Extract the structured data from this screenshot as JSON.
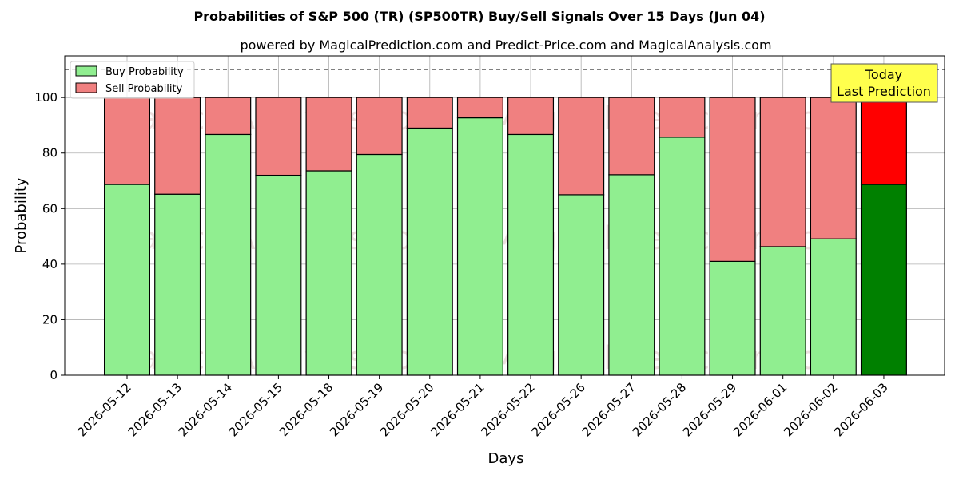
{
  "chart_data": {
    "type": "bar",
    "stacked": true,
    "title": "Probabilities of S&P 500 (TR) (SP500TR) Buy/Sell Signals Over 15 Days (Jun 04)",
    "subtitle": "powered by MagicalPrediction.com and Predict-Price.com and MagicalAnalysis.com",
    "xlabel": "Days",
    "ylabel": "Probability",
    "ylim": [
      0,
      115
    ],
    "yticks": [
      0,
      20,
      40,
      60,
      80,
      100
    ],
    "reference_line": 110,
    "grid": true,
    "legend_position": "top-left",
    "categories": [
      "2026-05-12",
      "2026-05-13",
      "2026-05-14",
      "2026-05-15",
      "2026-05-18",
      "2026-05-19",
      "2026-05-20",
      "2026-05-21",
      "2026-05-22",
      "2026-05-26",
      "2026-05-27",
      "2026-05-28",
      "2026-05-29",
      "2026-06-01",
      "2026-06-02",
      "2026-06-03"
    ],
    "series": [
      {
        "name": "Buy Probability",
        "color": "#90ee90",
        "highlight_color": "#008000",
        "values": [
          68.7,
          65.2,
          86.7,
          72.0,
          73.6,
          79.5,
          89.0,
          92.7,
          86.7,
          65.0,
          72.2,
          85.7,
          41.0,
          46.3,
          49.1,
          68.7
        ]
      },
      {
        "name": "Sell Probability",
        "color": "#f08080",
        "highlight_color": "#ff0000",
        "values": [
          31.3,
          34.8,
          13.3,
          28.0,
          26.4,
          20.5,
          11.0,
          7.3,
          13.3,
          35.0,
          27.8,
          14.3,
          59.0,
          53.7,
          50.9,
          31.3
        ]
      }
    ],
    "annotation": {
      "lines": [
        "Today",
        "Last Prediction"
      ],
      "bg": "#ffff4d"
    },
    "watermarks": [
      "MagicalAnalysis.com",
      "MagicalPrediction.com"
    ]
  }
}
